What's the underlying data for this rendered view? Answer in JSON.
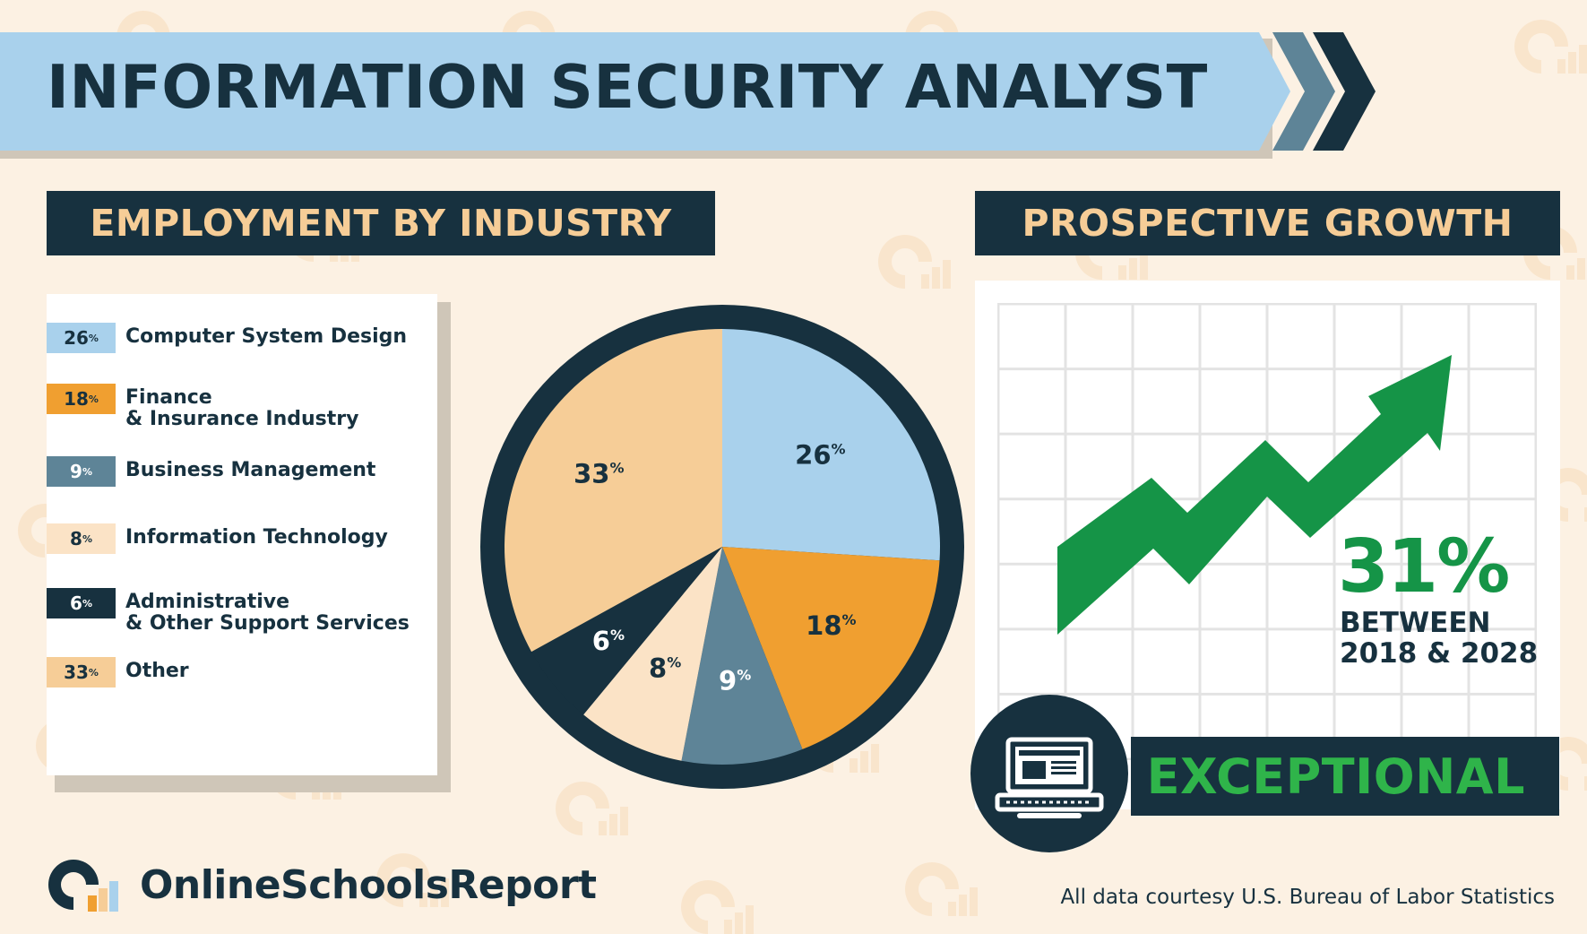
{
  "title": "INFORMATION SECURITY ANALYST",
  "sections": {
    "employment_header": "EMPLOYMENT BY INDUSTRY",
    "growth_header": "PROSPECTIVE GROWTH"
  },
  "chart_data": [
    {
      "type": "pie",
      "title": "EMPLOYMENT BY INDUSTRY",
      "slices": [
        {
          "label": "Computer System Design",
          "value": 26,
          "color": "#a9d1ec",
          "text_color": "#17313f"
        },
        {
          "label": "Finance\n& Insurance Industry",
          "value": 18,
          "color": "#f09f30",
          "text_color": "#17313f"
        },
        {
          "label": "Business Management",
          "value": 9,
          "color": "#5e8497",
          "text_color": "#ffffff"
        },
        {
          "label": "Information Technology",
          "value": 8,
          "color": "#fbe3c6",
          "text_color": "#17313f"
        },
        {
          "label": "Administrative\n& Other Support Services",
          "value": 6,
          "color": "#17313f",
          "text_color": "#ffffff"
        },
        {
          "label": "Other",
          "value": 33,
          "color": "#f6cd97",
          "text_color": "#17313f"
        }
      ],
      "percent_suffix": "%",
      "border_color": "#17313f"
    },
    {
      "type": "line",
      "title": "PROSPECTIVE GROWTH",
      "growth_value": "31%",
      "period_line1": "BETWEEN",
      "period_line2": "2018 & 2028",
      "grid": true,
      "arrow_color": "#159447"
    }
  ],
  "outlook": {
    "label": "EXCEPTIONAL",
    "icon": "laptop-icon"
  },
  "footer": {
    "brand": "OnlineSchoolsReport",
    "logo_icon": "online-schools-report-logo-icon",
    "credit": "All data courtesy U.S. Bureau of Labor Statistics"
  },
  "colors": {
    "navy": "#17313f",
    "light_blue": "#a9d1ec",
    "orange": "#f09f30",
    "slate": "#5e8497",
    "cream": "#fbe3c6",
    "tan": "#f6cd97",
    "green": "#159447",
    "bright_green": "#2fb44a",
    "background": "#fcf1e3"
  }
}
